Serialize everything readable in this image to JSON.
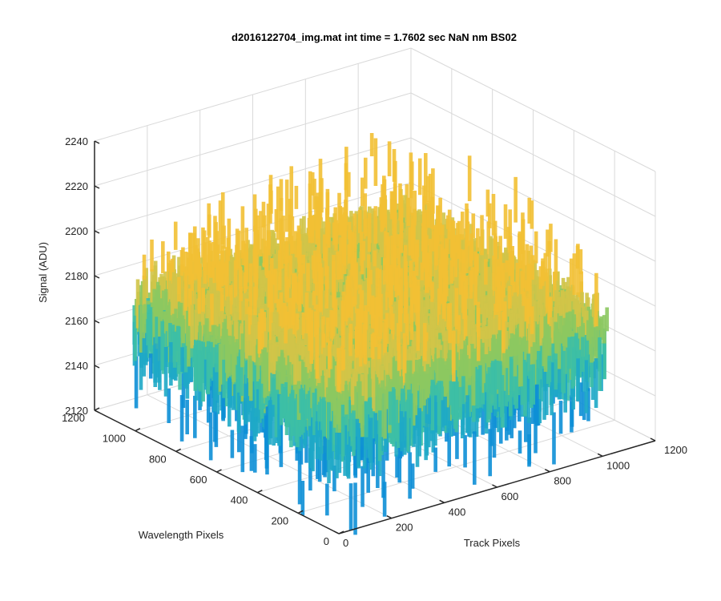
{
  "chart_data": {
    "type": "surface",
    "title": "d2016122704_img.mat int time = 1.7602 sec  NaN nm BS02",
    "xlabel": "Track Pixels",
    "ylabel": "Wavelength Pixels",
    "zlabel": "Signal (ADU)",
    "x_ticks": [
      "0",
      "200",
      "400",
      "600",
      "800",
      "1000",
      "1200"
    ],
    "y_ticks": [
      "0",
      "200",
      "400",
      "600",
      "800",
      "1000",
      "1200"
    ],
    "z_ticks": [
      "2120",
      "2140",
      "2160",
      "2180",
      "2200",
      "2220",
      "2240"
    ],
    "xlim": [
      0,
      1200
    ],
    "ylim": [
      0,
      1200
    ],
    "zlim": [
      2120,
      2240
    ],
    "surface_extent": {
      "x": [
        0,
        1024
      ],
      "y": [
        0,
        1024
      ]
    },
    "approx_mean_signal": 2180,
    "approx_min_signal": 2120,
    "approx_max_signal": 2235,
    "colormap": [
      "#0d8fd6",
      "#1ea8c6",
      "#3dbfa5",
      "#8cc860",
      "#d0c448",
      "#f2c034"
    ],
    "grid": true,
    "view": "isometric-3d"
  }
}
